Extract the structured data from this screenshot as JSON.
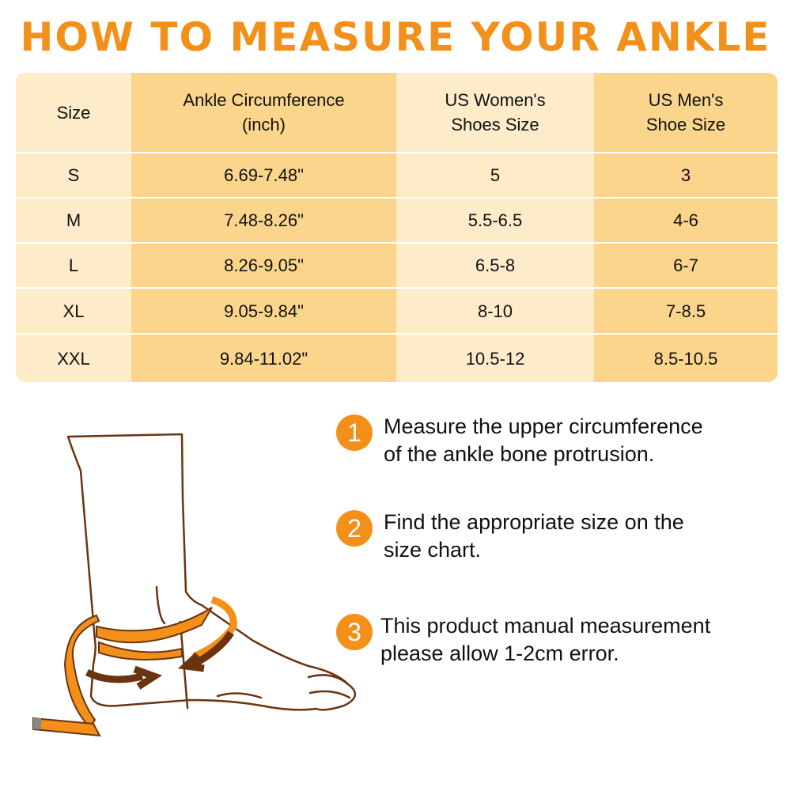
{
  "title": "HOW TO MEASURE YOUR ANKLE",
  "table": {
    "headers": [
      "Size",
      "Ankle Circumference\n(inch)",
      "US Women's\nShoes Size",
      "US Men's\nShoe Size"
    ],
    "rows": [
      [
        "S",
        "6.69-7.48\"",
        "5",
        "3"
      ],
      [
        "M",
        "7.48-8.26\"",
        "5.5-6.5",
        "4-6"
      ],
      [
        "L",
        "8.26-9.05\"",
        "6.5-8",
        "6-7"
      ],
      [
        "XL",
        "9.05-9.84\"",
        "8-10",
        "7-8.5"
      ],
      [
        "XXL",
        "9.84-11.02\"",
        "10.5-12",
        "8.5-10.5"
      ]
    ]
  },
  "steps": [
    {
      "number": "1",
      "text": "Measure the upper circumference\nof the ankle bone protrusion."
    },
    {
      "number": "2",
      "text": "Find the appropriate size on the\nsize chart."
    },
    {
      "number": "3",
      "text": "This product manual measurement\nplease allow 1-2cm error."
    }
  ],
  "colors": {
    "accent": "#f39019",
    "light_column": "#fdebc9",
    "dark_column": "#fbd58b",
    "outline": "#6b3410"
  }
}
